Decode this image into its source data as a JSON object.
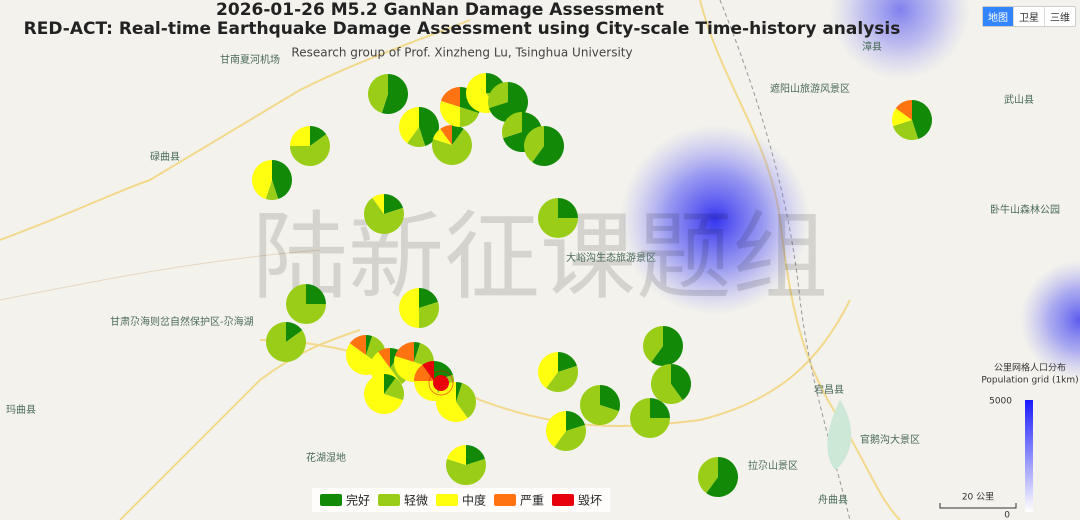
{
  "header": {
    "title": "2026-01-26 M5.2 GanNan Damage Assessment",
    "subtitle": "RED-ACT: Real-time Earthquake Damage Assessment using City-scale Time-history analysis",
    "credit": "Research group of Prof. Xinzheng Lu, Tsinghua University"
  },
  "watermark": "陆新征课题组",
  "map_types": [
    "地图",
    "卫星",
    "三维"
  ],
  "legend": {
    "items": [
      {
        "label": "完好",
        "color": "#138a07"
      },
      {
        "label": "轻微",
        "color": "#9acd17"
      },
      {
        "label": "中度",
        "color": "#ffff10"
      },
      {
        "label": "严重",
        "color": "#ff7410"
      },
      {
        "label": "毁坏",
        "color": "#e8000b"
      }
    ]
  },
  "pies": [
    {
      "values": [
        55,
        45,
        0,
        0,
        0
      ]
    },
    {
      "values": [
        15,
        60,
        25,
        0,
        0
      ]
    },
    {
      "values": [
        45,
        10,
        45,
        0,
        0
      ]
    },
    {
      "values": [
        45,
        15,
        40,
        0,
        0
      ]
    },
    {
      "values": [
        10,
        70,
        10,
        10,
        0
      ]
    },
    {
      "values": [
        30,
        20,
        30,
        20,
        0
      ]
    },
    {
      "values": [
        25,
        15,
        60,
        0,
        0
      ]
    },
    {
      "values": [
        70,
        30,
        0,
        0,
        0
      ]
    },
    {
      "values": [
        70,
        30,
        0,
        0,
        0
      ]
    },
    {
      "values": [
        60,
        40,
        0,
        0,
        0
      ]
    },
    {
      "values": [
        20,
        70,
        10,
        0,
        0
      ]
    },
    {
      "values": [
        25,
        75,
        0,
        0,
        0
      ]
    },
    {
      "values": [
        25,
        75,
        0,
        0,
        0
      ]
    },
    {
      "values": [
        20,
        30,
        50,
        0,
        0
      ]
    },
    {
      "values": [
        15,
        85,
        0,
        0,
        0
      ]
    },
    {
      "values": [
        5,
        30,
        50,
        15,
        0
      ]
    },
    {
      "values": [
        10,
        30,
        50,
        10,
        0
      ]
    },
    {
      "values": [
        5,
        25,
        50,
        20,
        0
      ]
    },
    {
      "values": [
        10,
        20,
        70,
        0,
        0
      ]
    },
    {
      "values": [
        20,
        25,
        30,
        15,
        10
      ]
    },
    {
      "values": [
        5,
        35,
        60,
        0,
        0
      ]
    },
    {
      "values": [
        20,
        40,
        40,
        0,
        0
      ]
    },
    {
      "values": [
        30,
        70,
        0,
        0,
        0
      ]
    },
    {
      "values": [
        20,
        40,
        40,
        0,
        0
      ]
    },
    {
      "values": [
        25,
        75,
        0,
        0,
        0
      ]
    },
    {
      "values": [
        60,
        40,
        0,
        0,
        0
      ]
    },
    {
      "values": [
        40,
        60,
        0,
        0,
        0
      ]
    },
    {
      "values": [
        20,
        60,
        20,
        0,
        0
      ]
    },
    {
      "values": [
        60,
        40,
        0,
        0,
        0
      ]
    },
    {
      "values": [
        45,
        25,
        15,
        15,
        0
      ]
    }
  ],
  "map_labels": [
    "甘南夏河机场",
    "碌曲县",
    "玛曲县",
    "遮阳山旅游风景区",
    "武山县",
    "卧牛山森林公园",
    "大峪沟生态旅游景区",
    "甘肃尕海则岔自然保护区-尕海湖",
    "宕昌县",
    "官鹅沟大景区",
    "拉尕山景区",
    "舟曲县",
    "花湖湿地",
    "漳县"
  ],
  "population_legend": {
    "title": "公里网格人口分布",
    "subtitle": "Population grid (1km)",
    "max": "5000",
    "min": "0"
  },
  "scale": "20 公里"
}
